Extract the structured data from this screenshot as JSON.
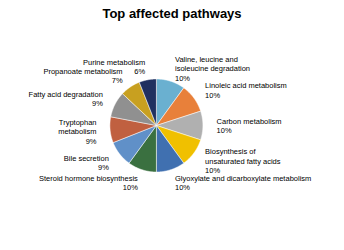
{
  "chart_data": {
    "type": "pie",
    "title": "Top affected pathways",
    "categories": [
      "Valine, leucine and\nisoleucine degradation",
      "Linoleic acid metabolism",
      "Carbon metabolism",
      "Biosynthesis of\nunsaturated fatty acids",
      "Glyoxylate and dicarboxylate metabolism",
      "Steroid hormone biosynthesis",
      "Bile secretion",
      "Tryptophan\nmetabolism",
      "Fatty acid degradation",
      "Propanoate metabolism",
      "Purine metabolism"
    ],
    "values": [
      10,
      10,
      10,
      10,
      10,
      10,
      9,
      9,
      9,
      7,
      6
    ],
    "value_labels": [
      "10%",
      "10%",
      "10%",
      "10%",
      "10%",
      "10%",
      "9%",
      "9%",
      "9%",
      "7%",
      "6%"
    ],
    "colors": [
      "#6ab0d0",
      "#e8803a",
      "#b0b0b0",
      "#f0c000",
      "#4070b0",
      "#3a7040",
      "#6090c8",
      "#c06040",
      "#909090",
      "#c8a020",
      "#203060"
    ],
    "data_labels": true
  }
}
